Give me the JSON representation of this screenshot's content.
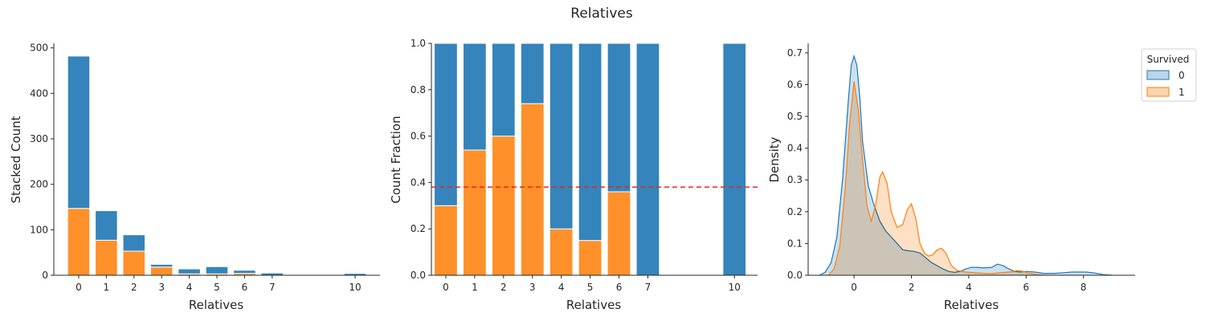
{
  "figure": {
    "title": "Relatives"
  },
  "colors": {
    "not_survived": "#3584bb",
    "survived": "#ff902a",
    "kde0_fill": "#bcd5e8",
    "kde0_line": "#1f77b4",
    "kde1_fill": "#fdd5b0",
    "kde1_line": "#ff7f0e",
    "mean_line": "#e8251d"
  },
  "chart_data": [
    {
      "type": "bar",
      "stacked": true,
      "title": "",
      "xlabel": "Relatives",
      "ylabel": "Stacked Count",
      "ylim": [
        0,
        510
      ],
      "yticks": [
        0,
        100,
        200,
        300,
        400,
        500
      ],
      "xticks": [
        0,
        1,
        2,
        3,
        4,
        5,
        6,
        7,
        10
      ],
      "categories": [
        0,
        1,
        2,
        3,
        4,
        5,
        6,
        7,
        10
      ],
      "series": [
        {
          "key": "1",
          "values": [
            147,
            77,
            53,
            18,
            3,
            3,
            4,
            0,
            0
          ]
        },
        {
          "key": "0",
          "values": [
            335,
            65,
            36,
            6,
            11,
            16,
            7,
            5,
            4
          ]
        }
      ],
      "grid": false
    },
    {
      "type": "bar",
      "stacked": true,
      "title": "",
      "xlabel": "Relatives",
      "ylabel": "Count Fraction",
      "ylim": [
        0,
        1.0
      ],
      "yticks": [
        0.0,
        0.2,
        0.4,
        0.6,
        0.8,
        1.0
      ],
      "xticks": [
        0,
        1,
        2,
        3,
        4,
        5,
        6,
        7,
        10
      ],
      "categories": [
        0,
        1,
        2,
        3,
        4,
        5,
        6,
        7,
        10
      ],
      "series": [
        {
          "key": "1",
          "values": [
            0.3,
            0.54,
            0.6,
            0.74,
            0.2,
            0.15,
            0.36,
            0.0,
            0.0
          ]
        },
        {
          "key": "0",
          "values": [
            0.7,
            0.46,
            0.4,
            0.26,
            0.8,
            0.85,
            0.64,
            1.0,
            1.0
          ]
        }
      ],
      "hline": 0.38,
      "grid": false
    },
    {
      "type": "area",
      "title": "",
      "xlabel": "Relatives",
      "ylabel": "Density",
      "xlim": [
        -1.6,
        9.8
      ],
      "ylim": [
        0,
        0.73
      ],
      "xticks": [
        0,
        2,
        4,
        6,
        8
      ],
      "yticks": [
        0.0,
        0.1,
        0.2,
        0.3,
        0.4,
        0.5,
        0.6,
        0.7
      ],
      "legend": {
        "title": "Survived",
        "entries": [
          "0",
          "1"
        ],
        "placement": "upper-right-outside"
      },
      "series": [
        {
          "name": "0",
          "x": [
            -1.2,
            -1.0,
            -0.8,
            -0.6,
            -0.4,
            -0.2,
            -0.1,
            0.0,
            0.1,
            0.2,
            0.3,
            0.5,
            0.7,
            0.9,
            1.1,
            1.3,
            1.5,
            1.7,
            1.9,
            2.1,
            2.3,
            2.5,
            2.7,
            2.9,
            3.1,
            3.3,
            3.5,
            3.7,
            3.9,
            4.1,
            4.3,
            4.5,
            4.8,
            5.0,
            5.2,
            5.4,
            5.6,
            5.8,
            6.0,
            6.3,
            6.6,
            7.0,
            7.3,
            7.6,
            7.9,
            8.1,
            8.4,
            8.7,
            9.0
          ],
          "y": [
            0.0,
            0.01,
            0.04,
            0.12,
            0.3,
            0.55,
            0.66,
            0.69,
            0.66,
            0.56,
            0.42,
            0.28,
            0.22,
            0.17,
            0.14,
            0.12,
            0.1,
            0.08,
            0.077,
            0.075,
            0.07,
            0.055,
            0.04,
            0.03,
            0.02,
            0.012,
            0.009,
            0.012,
            0.02,
            0.025,
            0.025,
            0.023,
            0.025,
            0.035,
            0.03,
            0.02,
            0.012,
            0.01,
            0.012,
            0.01,
            0.006,
            0.006,
            0.008,
            0.01,
            0.01,
            0.01,
            0.007,
            0.002,
            0.0
          ]
        },
        {
          "name": "1",
          "x": [
            -0.9,
            -0.7,
            -0.5,
            -0.3,
            -0.15,
            0.0,
            0.15,
            0.3,
            0.45,
            0.6,
            0.75,
            0.9,
            1.0,
            1.15,
            1.3,
            1.5,
            1.7,
            1.85,
            2.0,
            2.15,
            2.3,
            2.45,
            2.6,
            2.75,
            2.9,
            3.05,
            3.2,
            3.4,
            3.6,
            3.9,
            4.2,
            4.5,
            4.8,
            5.1,
            5.4,
            5.7,
            5.9,
            6.1,
            6.4,
            6.7
          ],
          "y": [
            0.0,
            0.02,
            0.09,
            0.28,
            0.48,
            0.61,
            0.52,
            0.36,
            0.22,
            0.17,
            0.22,
            0.31,
            0.325,
            0.29,
            0.2,
            0.15,
            0.16,
            0.205,
            0.225,
            0.18,
            0.1,
            0.07,
            0.06,
            0.065,
            0.08,
            0.085,
            0.07,
            0.03,
            0.015,
            0.01,
            0.008,
            0.006,
            0.005,
            0.008,
            0.01,
            0.015,
            0.012,
            0.006,
            0.002,
            0.0
          ]
        }
      ],
      "grid": false
    }
  ]
}
